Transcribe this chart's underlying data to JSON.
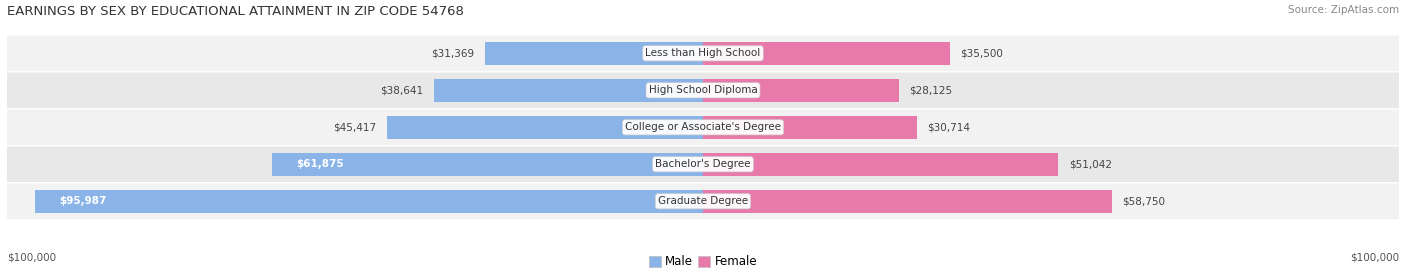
{
  "title": "EARNINGS BY SEX BY EDUCATIONAL ATTAINMENT IN ZIP CODE 54768",
  "source": "Source: ZipAtlas.com",
  "categories": [
    "Less than High School",
    "High School Diploma",
    "College or Associate's Degree",
    "Bachelor's Degree",
    "Graduate Degree"
  ],
  "male_values": [
    31369,
    38641,
    45417,
    61875,
    95987
  ],
  "female_values": [
    35500,
    28125,
    30714,
    51042,
    58750
  ],
  "male_color": "#8ab4e8",
  "female_color": "#e87aab",
  "row_bg_even": "#f2f2f2",
  "row_bg_odd": "#e8e8e8",
  "max_value": 100000,
  "axis_label_left": "$100,000",
  "axis_label_right": "$100,000",
  "background_color": "#ffffff",
  "title_fontsize": 9.5,
  "source_fontsize": 7.5,
  "bar_label_fontsize": 7.5,
  "category_fontsize": 7.5,
  "legend_fontsize": 8.5,
  "male_inside_threshold": 55000
}
